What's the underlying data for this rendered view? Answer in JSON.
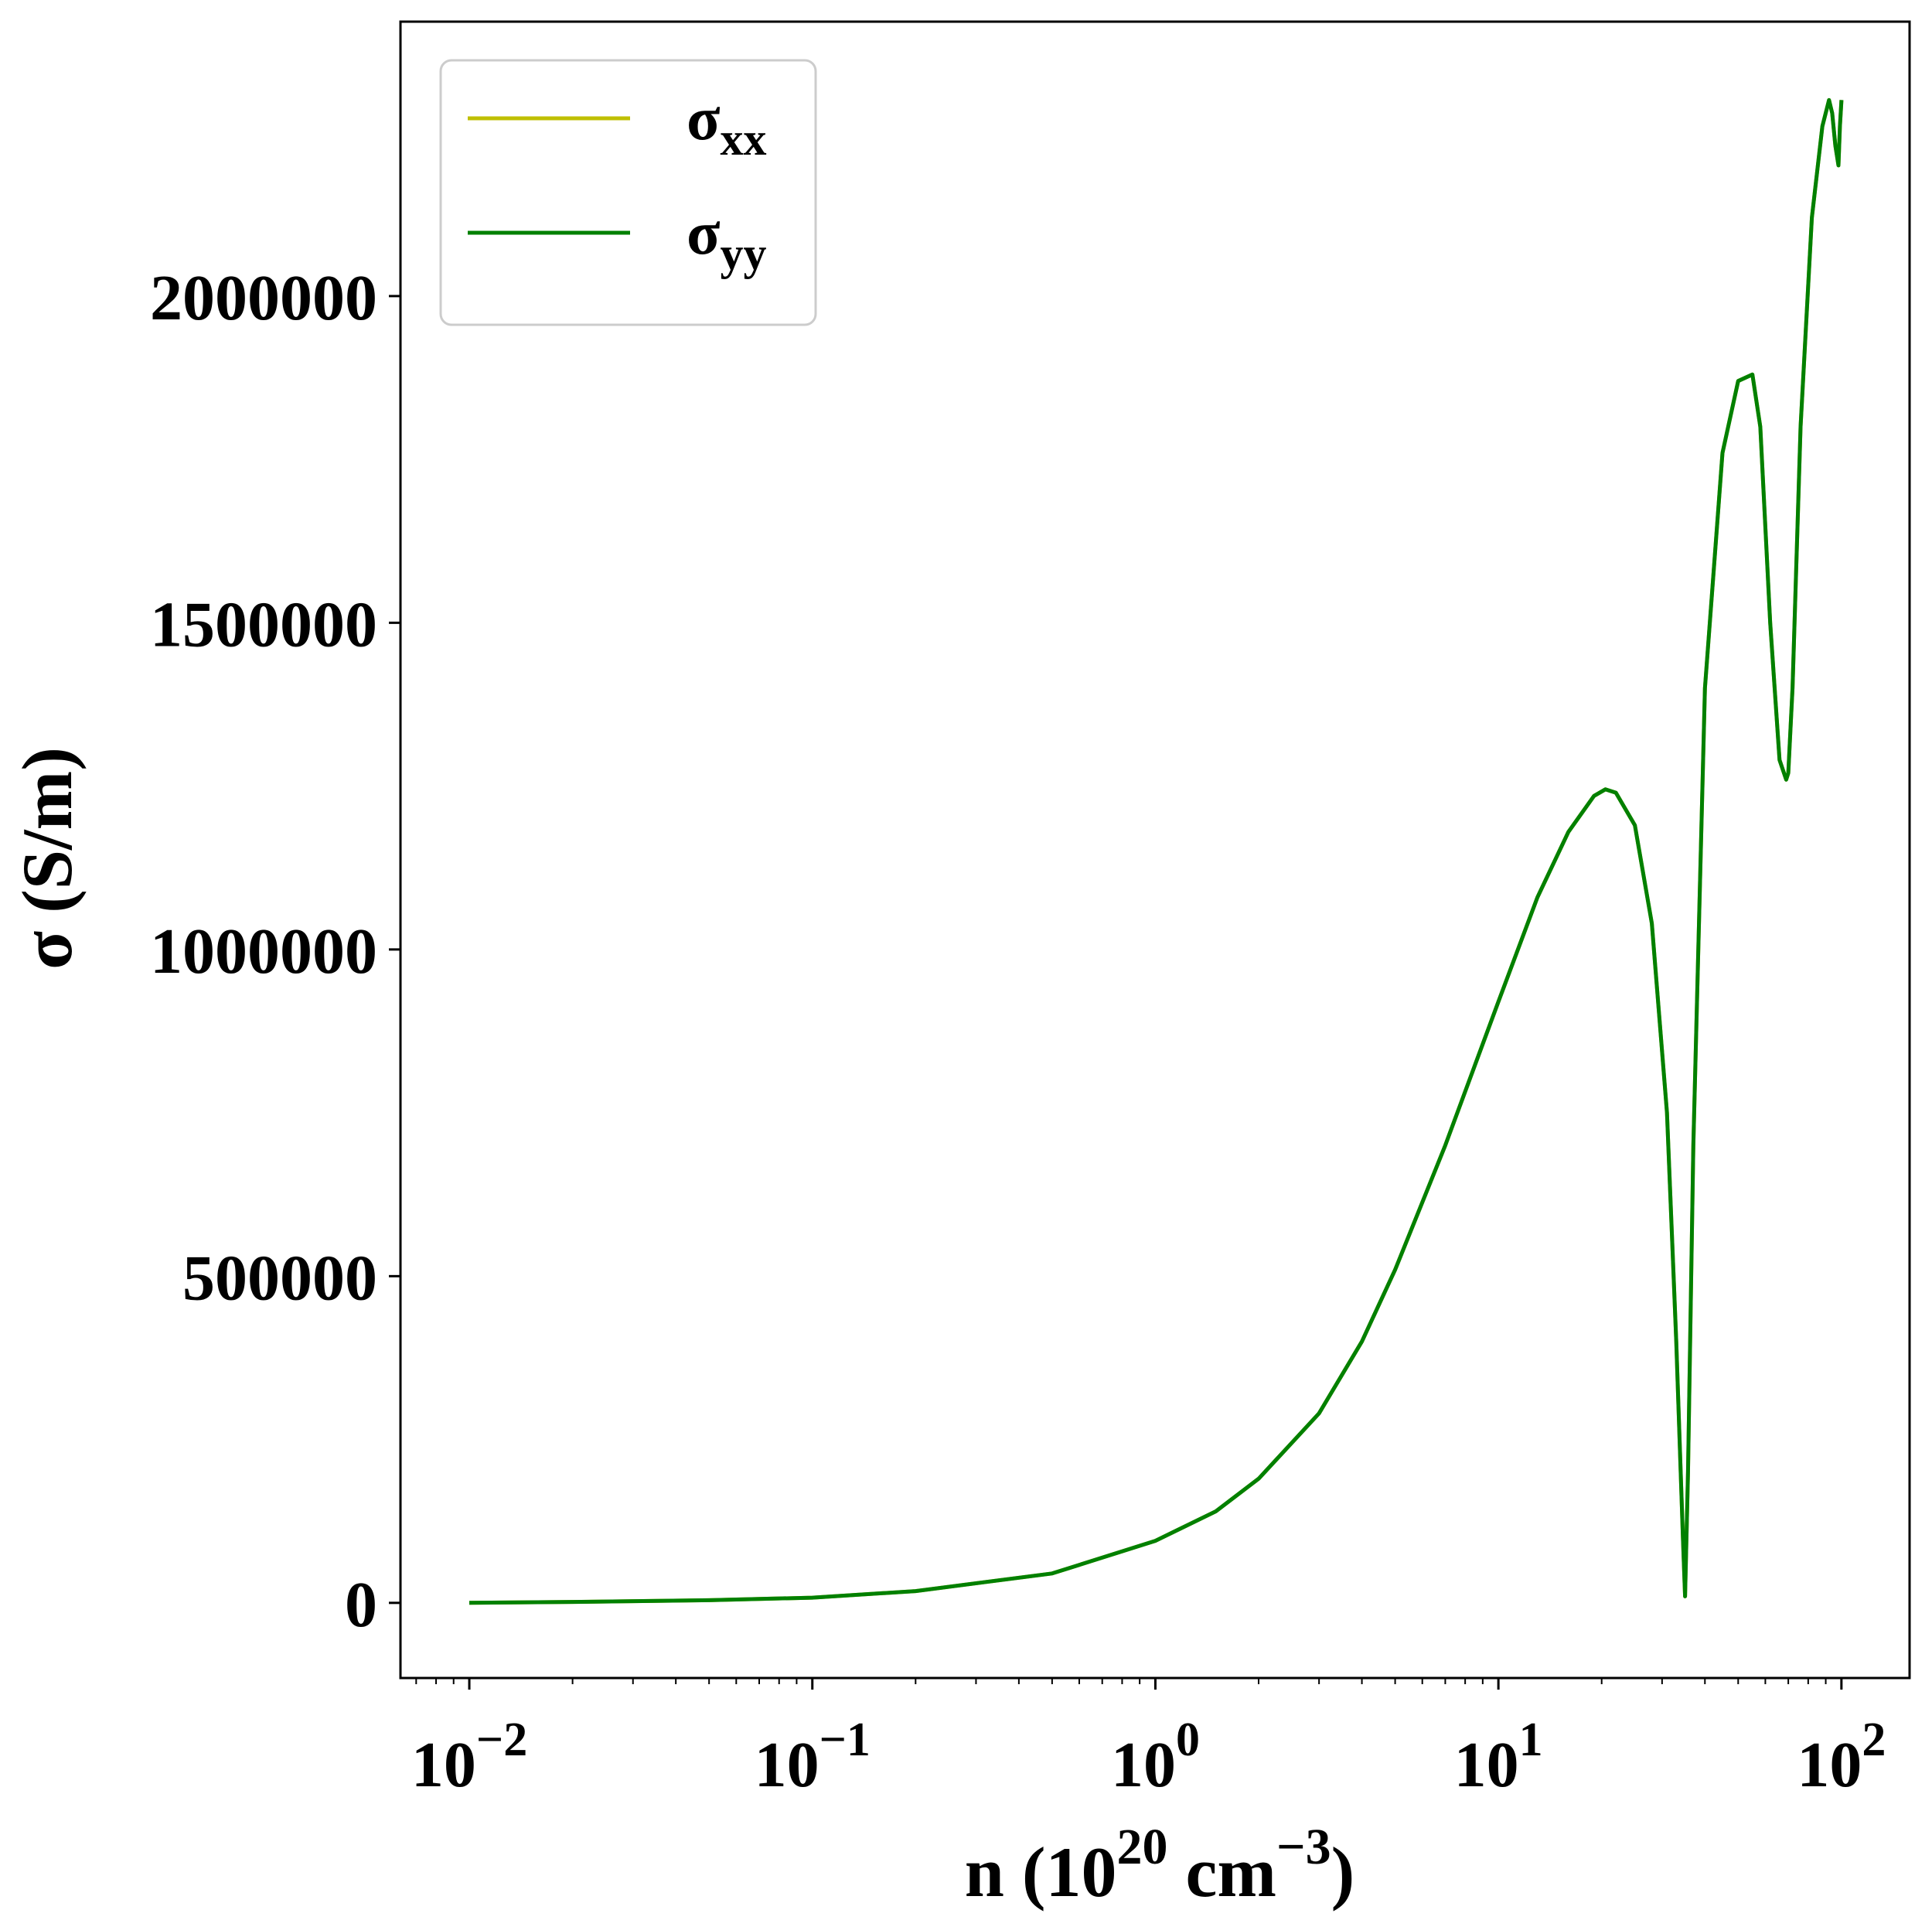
{
  "chart_data": {
    "type": "line",
    "xscale": "log",
    "xlim": [
      0.0063,
      158
    ],
    "ylim": [
      -115000,
      2420000
    ],
    "xlabel": {
      "main": "n (10",
      "sup1": "20",
      "mid": " cm",
      "sup2": "−3",
      "end": ")"
    },
    "ylabel": "σ (S/m)",
    "x_ticks": [
      {
        "value": 0.01,
        "base": "10",
        "exp": "−2"
      },
      {
        "value": 0.1,
        "base": "10",
        "exp": "−1"
      },
      {
        "value": 1,
        "base": "10",
        "exp": "0"
      },
      {
        "value": 10,
        "base": "10",
        "exp": "1"
      },
      {
        "value": 100,
        "base": "10",
        "exp": "2"
      }
    ],
    "y_ticks": [
      {
        "value": 0,
        "label": "0"
      },
      {
        "value": 500000,
        "label": "500000"
      },
      {
        "value": 1000000,
        "label": "1000000"
      },
      {
        "value": 1500000,
        "label": "1500000"
      },
      {
        "value": 2000000,
        "label": "2000000"
      }
    ],
    "grid": false,
    "legend_position": "top-left",
    "series": [
      {
        "name": "σxx",
        "legend_base": "σ",
        "legend_sub": "xx",
        "color": "#bfbf00",
        "x": [
          0.01,
          0.02,
          0.05,
          0.1,
          0.2,
          0.5,
          1.0,
          1.5,
          2.0,
          3.0,
          4.0,
          5.0,
          7.0,
          10.0,
          13.0,
          16.0,
          19.0,
          20.5,
          22.0,
          25.0,
          28.0,
          31.0,
          33.0,
          34.5,
          35.0,
          35.7,
          37.0,
          40.0,
          45.0,
          50.0,
          55.0,
          58.0,
          62.0,
          66.0,
          69.0,
          70.0,
          72.0,
          76.0,
          82.0,
          88.0,
          92.0,
          94.0,
          96.0,
          98.0,
          99.0,
          100.0
        ],
        "y": [
          0,
          1500,
          4000,
          8000,
          18000,
          45000,
          95000,
          140000,
          190000,
          290000,
          400000,
          510000,
          700000,
          920000,
          1080000,
          1180000,
          1235000,
          1245000,
          1240000,
          1190000,
          1040000,
          750000,
          400000,
          100000,
          10000,
          200000,
          700000,
          1400000,
          1760000,
          1870000,
          1880000,
          1800000,
          1500000,
          1290000,
          1260000,
          1270000,
          1400000,
          1800000,
          2120000,
          2260000,
          2300000,
          2280000,
          2230000,
          2200000,
          2260000,
          2300000
        ]
      },
      {
        "name": "σyy",
        "legend_base": "σ",
        "legend_sub": "yy",
        "color": "#008000",
        "x": [
          0.01,
          0.02,
          0.05,
          0.1,
          0.2,
          0.5,
          1.0,
          1.5,
          2.0,
          3.0,
          4.0,
          5.0,
          7.0,
          10.0,
          13.0,
          16.0,
          19.0,
          20.5,
          22.0,
          25.0,
          28.0,
          31.0,
          33.0,
          34.5,
          35.0,
          35.7,
          37.0,
          40.0,
          45.0,
          50.0,
          55.0,
          58.0,
          62.0,
          66.0,
          69.0,
          70.0,
          72.0,
          76.0,
          82.0,
          88.0,
          92.0,
          94.0,
          96.0,
          98.0,
          99.0,
          100.0
        ],
        "y": [
          0,
          1500,
          4000,
          8000,
          18000,
          45000,
          95000,
          140000,
          190000,
          290000,
          400000,
          510000,
          700000,
          920000,
          1080000,
          1180000,
          1235000,
          1245000,
          1240000,
          1190000,
          1040000,
          750000,
          400000,
          100000,
          10000,
          200000,
          700000,
          1400000,
          1760000,
          1870000,
          1880000,
          1800000,
          1500000,
          1290000,
          1260000,
          1270000,
          1400000,
          1800000,
          2120000,
          2260000,
          2300000,
          2280000,
          2230000,
          2200000,
          2260000,
          2300000
        ]
      }
    ]
  }
}
